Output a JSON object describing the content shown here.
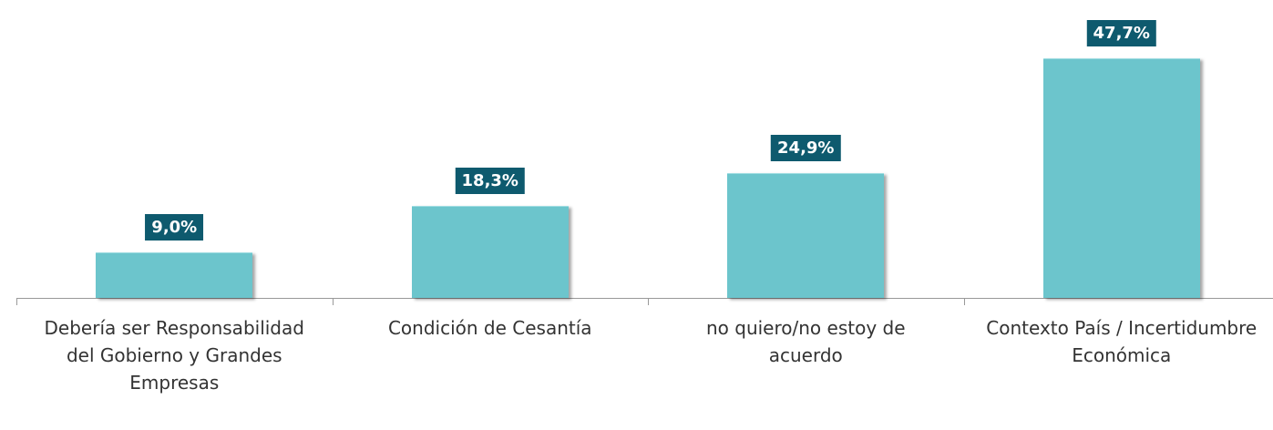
{
  "chart_data": {
    "type": "bar",
    "categories": [
      "Debería ser Responsabilidad del Gobierno y Grandes Empresas",
      "Condición de Cesantía",
      "no quiero/no estoy de acuerdo",
      "Contexto País / Incertidumbre Económica"
    ],
    "values": [
      9.0,
      18.3,
      24.9,
      47.7
    ],
    "value_labels": [
      "9,0%",
      "18,3%",
      "24,9%",
      "47,7%"
    ],
    "color": "#6cc5cc"
  }
}
